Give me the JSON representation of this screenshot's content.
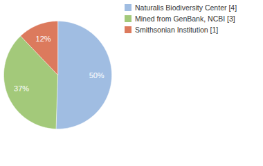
{
  "chart_data": {
    "type": "pie",
    "categories": [
      "Naturalis Biodiversity Center [4]",
      "Mined from GenBank, NCBI [3]",
      "Smithsonian Institution [1]"
    ],
    "values": [
      50,
      37,
      12
    ],
    "value_labels": [
      "50%",
      "37%",
      "12%"
    ],
    "colors": [
      "#a0bde2",
      "#a3c97a",
      "#dc7a5d"
    ],
    "data_labels": true,
    "legend": "right"
  }
}
